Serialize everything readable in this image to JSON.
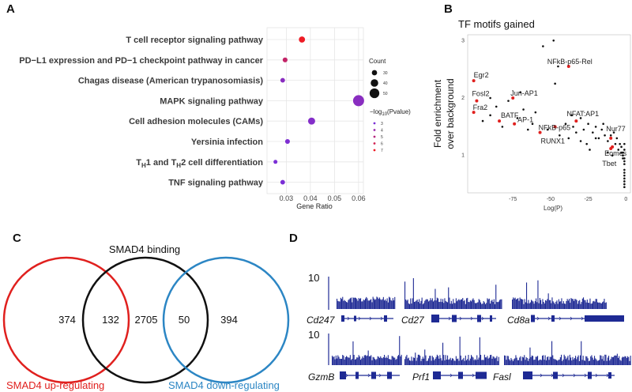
{
  "panels": {
    "a": "A",
    "b": "B",
    "c": "C",
    "d": "D"
  },
  "colors": {
    "low": "#7b2fd6",
    "high": "#ee1c25",
    "grid": "#e6e6e6",
    "track": "#1e2a94",
    "venn_red": "#e0201e",
    "venn_black": "#111111",
    "venn_blue": "#2c86c4",
    "motif_red": "#e0201e"
  },
  "chart_data": [
    {
      "type": "scatter",
      "panel": "A",
      "xlabel": "Gene Ratio",
      "ylabel": "",
      "xlim": [
        0.022,
        0.062
      ],
      "xticks": [
        "0.03",
        "0.04",
        "0.05",
        "0.06"
      ],
      "categories": [
        "T cell receptor signaling pathway",
        "PD−L1 expression and PD−1 checkpoint pathway in cancer",
        "Chagas disease (American trypanosomiasis)",
        "MAPK signaling pathway",
        "Cell adhesion molecules (CAMs)",
        "Yersinia infection",
        "Tₕ₁ and Tₕ₂ cell differentiation",
        "TNF signaling pathway"
      ],
      "category_parts": [
        {
          "text": "T cell receptor signaling pathway"
        },
        {
          "text": "PD−L1 expression and PD−1 checkpoint pathway in cancer"
        },
        {
          "text": "Chagas disease (American trypanosomiasis)"
        },
        {
          "text": "MAPK signaling pathway"
        },
        {
          "text": "Cell adhesion molecules (CAMs)"
        },
        {
          "text": "Yersinia infection"
        },
        {
          "rich": [
            "T",
            "H",
            "1 and T",
            "H",
            "2 cell differentiation"
          ]
        },
        {
          "text": "TNF signaling pathway"
        }
      ],
      "points": [
        {
          "gene_ratio": 0.0365,
          "count": 34,
          "neglog10p": 7.0
        },
        {
          "gene_ratio": 0.0295,
          "count": 28,
          "neglog10p": 5.5
        },
        {
          "gene_ratio": 0.0285,
          "count": 27,
          "neglog10p": 3.5
        },
        {
          "gene_ratio": 0.06,
          "count": 56,
          "neglog10p": 3.5
        },
        {
          "gene_ratio": 0.0405,
          "count": 38,
          "neglog10p": 3.3
        },
        {
          "gene_ratio": 0.0305,
          "count": 28,
          "neglog10p": 3.1
        },
        {
          "gene_ratio": 0.0255,
          "count": 24,
          "neglog10p": 3.0
        },
        {
          "gene_ratio": 0.0285,
          "count": 27,
          "neglog10p": 3.0
        }
      ],
      "legend": {
        "size_title": "Count",
        "size_values": [
          30,
          40,
          50
        ],
        "color_title_prefix": "−log",
        "color_title_sub": "10",
        "color_title_suffix": "(Pvalue)",
        "color_values": [
          "3",
          "4",
          "5",
          "6",
          "7"
        ]
      }
    },
    {
      "type": "scatter",
      "panel": "B",
      "title": "TF motifs gained",
      "xlabel": "Log(P)",
      "ylabel_lines": [
        "Fold enrichment",
        "over background"
      ],
      "xlim": [
        -105,
        3
      ],
      "ylim": [
        0.35,
        3.1
      ],
      "xticks": [
        -75,
        -50,
        -25,
        0
      ],
      "yticks": [
        1,
        2,
        3
      ],
      "highlighted": [
        {
          "name": "Egr2",
          "x": -101,
          "y": 2.3
        },
        {
          "name": "Fosl2",
          "x": -99,
          "y": 1.95
        },
        {
          "name": "Fra2",
          "x": -101,
          "y": 1.75
        },
        {
          "name": "Jun-AP1",
          "x": -75,
          "y": 2.0
        },
        {
          "name": "BATF",
          "x": -84,
          "y": 1.6
        },
        {
          "name": "AP-1",
          "x": -74,
          "y": 1.55
        },
        {
          "name": "NFkB-p65-Rel",
          "x": -38,
          "y": 2.55
        },
        {
          "name": "NFkB-p65",
          "x": -47,
          "y": 1.5
        },
        {
          "name": "RUNX1",
          "x": -57,
          "y": 1.4
        },
        {
          "name": "NFAT:AP1",
          "x": -33,
          "y": 1.6
        },
        {
          "name": "Nur77",
          "x": -10,
          "y": 1.3
        },
        {
          "name": "Eomes",
          "x": -9,
          "y": 1.15
        },
        {
          "name": "Tbet",
          "x": -10,
          "y": 1.12
        }
      ],
      "background": [
        [
          -48,
          3.0
        ],
        [
          -55,
          2.9
        ],
        [
          -45,
          2.55
        ],
        [
          -47,
          2.25
        ],
        [
          -70,
          2.1
        ],
        [
          -90,
          2.0
        ],
        [
          -78,
          1.95
        ],
        [
          -68,
          1.8
        ],
        [
          -60,
          1.75
        ],
        [
          -90,
          1.7
        ],
        [
          -95,
          1.6
        ],
        [
          -82,
          1.5
        ],
        [
          -62,
          1.55
        ],
        [
          -52,
          1.45
        ],
        [
          -40,
          1.55
        ],
        [
          -35,
          1.5
        ],
        [
          -30,
          1.65
        ],
        [
          -28,
          1.45
        ],
        [
          -25,
          1.55
        ],
        [
          -22,
          1.4
        ],
        [
          -20,
          1.5
        ],
        [
          -18,
          1.3
        ],
        [
          -16,
          1.45
        ],
        [
          -14,
          1.35
        ],
        [
          -12,
          1.25
        ],
        [
          -10,
          1.35
        ],
        [
          -8,
          1.4
        ],
        [
          -7,
          1.2
        ],
        [
          -6,
          1.3
        ],
        [
          -5,
          1.1
        ],
        [
          -4,
          1.2
        ],
        [
          -3,
          1.05
        ],
        [
          -3,
          1.15
        ],
        [
          -2,
          0.95
        ],
        [
          -2,
          1.05
        ],
        [
          -2,
          1.0
        ],
        [
          -1,
          0.85
        ],
        [
          -1,
          0.75
        ],
        [
          -1,
          0.65
        ],
        [
          -1,
          0.55
        ],
        [
          -1,
          0.45
        ],
        [
          -1,
          0.9
        ],
        [
          -1,
          1.1
        ],
        [
          -1,
          1.2
        ],
        [
          -1,
          0.95
        ],
        [
          -1,
          0.7
        ],
        [
          -1,
          0.6
        ],
        [
          -1,
          0.5
        ],
        [
          -44,
          1.35
        ],
        [
          -38,
          1.3
        ],
        [
          -30,
          1.25
        ],
        [
          -26,
          1.2
        ],
        [
          -24,
          1.1
        ],
        [
          -65,
          1.45
        ],
        [
          -72,
          1.65
        ],
        [
          -86,
          1.85
        ],
        [
          -36,
          1.7
        ],
        [
          -20,
          1.3
        ],
        [
          -12,
          1.05
        ],
        [
          -9,
          1.0
        ],
        [
          -15,
          1.55
        ],
        [
          -33,
          1.4
        ]
      ]
    }
  ],
  "venn": {
    "title": "SMAD4 binding",
    "regions": [
      "374",
      "132",
      "2705",
      "50",
      "394"
    ],
    "left_label": "SMAD4 up-regulating",
    "right_label": "SMAD4 down-regulating"
  },
  "tracks": {
    "scale_top": "10",
    "scale_bottom": "10",
    "genes_top": [
      "Cd247",
      "Cd27",
      "Cd8a"
    ],
    "genes_bottom": [
      "GzmB",
      "Prf1",
      "Fasl"
    ]
  }
}
